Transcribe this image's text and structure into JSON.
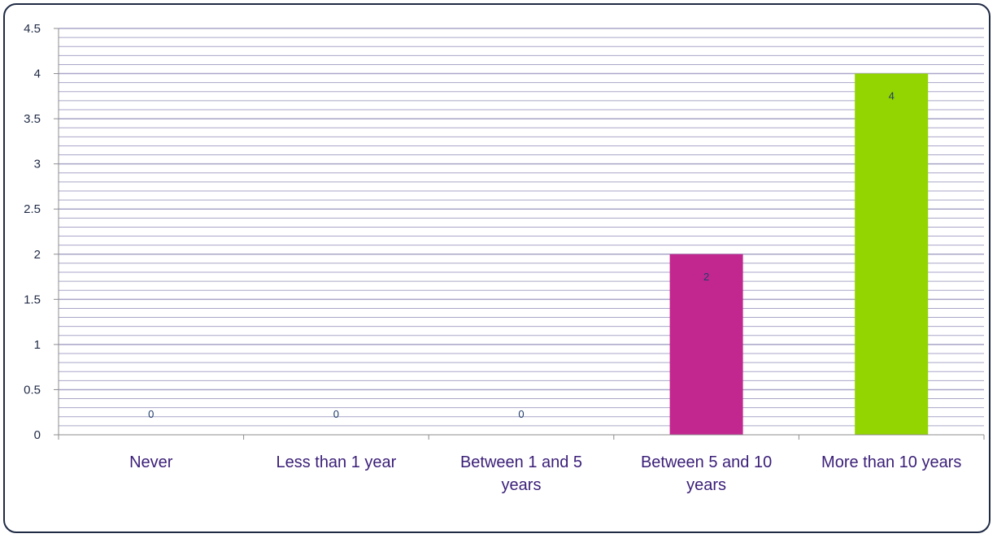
{
  "chart_data": {
    "type": "bar",
    "categories": [
      [
        "Never"
      ],
      [
        "Less than 1 year"
      ],
      [
        "Between 1 and 5",
        "years"
      ],
      [
        "Between 5 and 10",
        "years"
      ],
      [
        "More than 10 years"
      ]
    ],
    "values": [
      0,
      0,
      0,
      2,
      4
    ],
    "data_labels": [
      "0",
      "0",
      "0",
      "2",
      "4"
    ],
    "bar_colors": [
      "#b03090",
      "#b03090",
      "#b03090",
      "#c2278f",
      "#93d500"
    ],
    "ylim": [
      0,
      4.5
    ],
    "y_ticks": [
      0,
      0.5,
      1,
      1.5,
      2,
      2.5,
      3,
      3.5,
      4,
      4.5
    ],
    "y_tick_labels": [
      "0",
      "0.5",
      "1",
      "1.5",
      "2",
      "2.5",
      "3",
      "3.5",
      "4",
      "4.5"
    ],
    "minor_grid_step": 0.1,
    "grid": true,
    "title": "",
    "xlabel": "",
    "ylabel": "",
    "legend": "none",
    "colors": {
      "grid": "#a9a6c8",
      "axis": "#8c8c8c",
      "frame": "#1f2a44"
    }
  }
}
